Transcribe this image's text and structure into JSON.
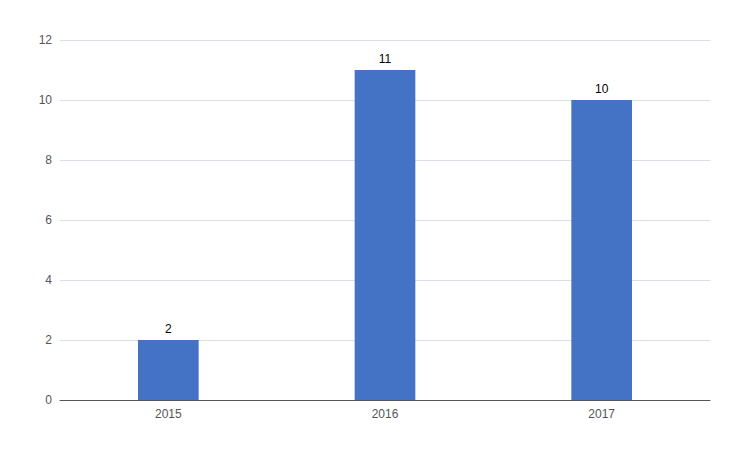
{
  "chart_data": {
    "type": "bar",
    "categories": [
      "2015",
      "2016",
      "2017"
    ],
    "values": [
      2,
      11,
      10
    ],
    "color": "#4472C4",
    "ylim": [
      0,
      12
    ],
    "yticks": [
      0,
      2,
      4,
      6,
      8,
      10,
      12
    ],
    "grid": true,
    "data_labels": true
  }
}
